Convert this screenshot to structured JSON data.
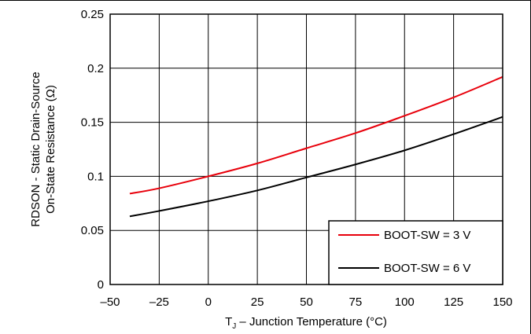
{
  "chart_data": {
    "type": "line",
    "xlabel_main": "T",
    "xlabel_sub": "J",
    "xlabel_rest": " – Junction Temperature (°C)",
    "ylabel_line1": "RDSON - Static Drain-Source",
    "ylabel_line2": "On-State Resistance (Ω)",
    "xlim": [
      -50,
      150
    ],
    "ylim": [
      0,
      0.25
    ],
    "x_ticks": [
      -50,
      -25,
      0,
      25,
      50,
      75,
      100,
      125,
      150
    ],
    "x_tick_labels": [
      "–50",
      "–25",
      "0",
      "25",
      "50",
      "75",
      "100",
      "125",
      "150"
    ],
    "y_ticks": [
      0,
      0.05,
      0.1,
      0.15,
      0.2,
      0.25
    ],
    "y_tick_labels": [
      "0",
      "0.05",
      "0.1",
      "0.15",
      "0.2",
      "0.25"
    ],
    "grid": true,
    "legend_position": "bottom-right",
    "series": [
      {
        "name": "BOOT-SW = 3 V",
        "color": "#e8000b",
        "x": [
          -40,
          -25,
          0,
          25,
          50,
          75,
          100,
          125,
          150
        ],
        "values": [
          0.084,
          0.089,
          0.1,
          0.112,
          0.126,
          0.14,
          0.156,
          0.173,
          0.192
        ]
      },
      {
        "name": "BOOT-SW = 6 V",
        "color": "#000000",
        "x": [
          -40,
          -25,
          0,
          25,
          50,
          75,
          100,
          125,
          150
        ],
        "values": [
          0.063,
          0.068,
          0.077,
          0.087,
          0.099,
          0.111,
          0.124,
          0.139,
          0.155
        ]
      }
    ]
  }
}
